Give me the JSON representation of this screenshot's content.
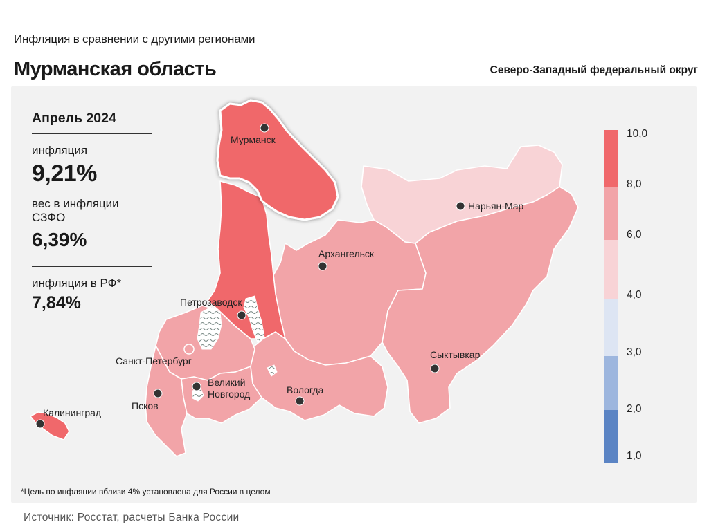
{
  "header": {
    "subtitle": "Инфляция  в сравнении  с другими  регионами",
    "title": "Мурманская область",
    "district": "Северо-Западный федеральный округ"
  },
  "stats": {
    "period": "Апрель 2024",
    "inflation_label": "инфляция",
    "inflation_value": "9,21%",
    "weight_label": "вес в инфляции  СЗФО",
    "weight_value": "6,39%",
    "rf_label": "инфляция  в РФ*",
    "rf_value": "7,84%"
  },
  "map": {
    "regions": [
      {
        "name": "Мурманская область",
        "category": "8-10",
        "color": "#f0686b",
        "highlighted": true
      },
      {
        "name": "Республика Карелия",
        "category": "8-10",
        "color": "#f0686b"
      },
      {
        "name": "Калининградская область",
        "category": "8-10",
        "color": "#f0686b"
      },
      {
        "name": "Ненецкий АО",
        "category": "4-6",
        "color": "#f8d3d6"
      },
      {
        "name": "Архангельская область",
        "category": "6-8",
        "color": "#f2a4a8"
      },
      {
        "name": "Республика Коми",
        "category": "6-8",
        "color": "#f2a4a8"
      },
      {
        "name": "Вологодская область",
        "category": "6-8",
        "color": "#f2a4a8"
      },
      {
        "name": "Ленинградская область",
        "category": "6-8",
        "color": "#f2a4a8"
      },
      {
        "name": "Новгородская область",
        "category": "6-8",
        "color": "#f2a4a8"
      },
      {
        "name": "Псковская область",
        "category": "6-8",
        "color": "#f2a4a8"
      },
      {
        "name": "Санкт-Петербург",
        "category": "6-8",
        "color": "#f2a4a8"
      }
    ],
    "cities": {
      "murmansk": "Мурманск",
      "naryan_mar": "Нарьян-Мар",
      "arkhangelsk": "Архангельск",
      "petrozavodsk": "Петрозаводск",
      "spb": "Санкт-Петербург",
      "novgorod_1": "Великий",
      "novgorod_2": "Новгород",
      "vologda": "Вологда",
      "syktyvkar": "Сыктывкар",
      "pskov": "Псков",
      "kaliningrad": "Калининград"
    }
  },
  "legend": {
    "ticks": [
      "10,0",
      "8,0",
      "6,0",
      "4,0",
      "3,0",
      "2,0",
      "1,0"
    ],
    "bands": [
      {
        "range": "8,0–10,0",
        "color": "#f0686b"
      },
      {
        "range": "6,0–8,0",
        "color": "#f2a4a8"
      },
      {
        "range": "4,0–6,0",
        "color": "#f8d3d6"
      },
      {
        "range": "3,0–4,0",
        "color": "#dde5f3"
      },
      {
        "range": "2,0–3,0",
        "color": "#9db6de"
      },
      {
        "range": "1,0–2,0",
        "color": "#5b84c4"
      }
    ]
  },
  "footnote": "*Цель по инфляции вблизи 4% установлена для России в целом",
  "source": "Источник:  Росстат,  расчеты  Банка  России"
}
